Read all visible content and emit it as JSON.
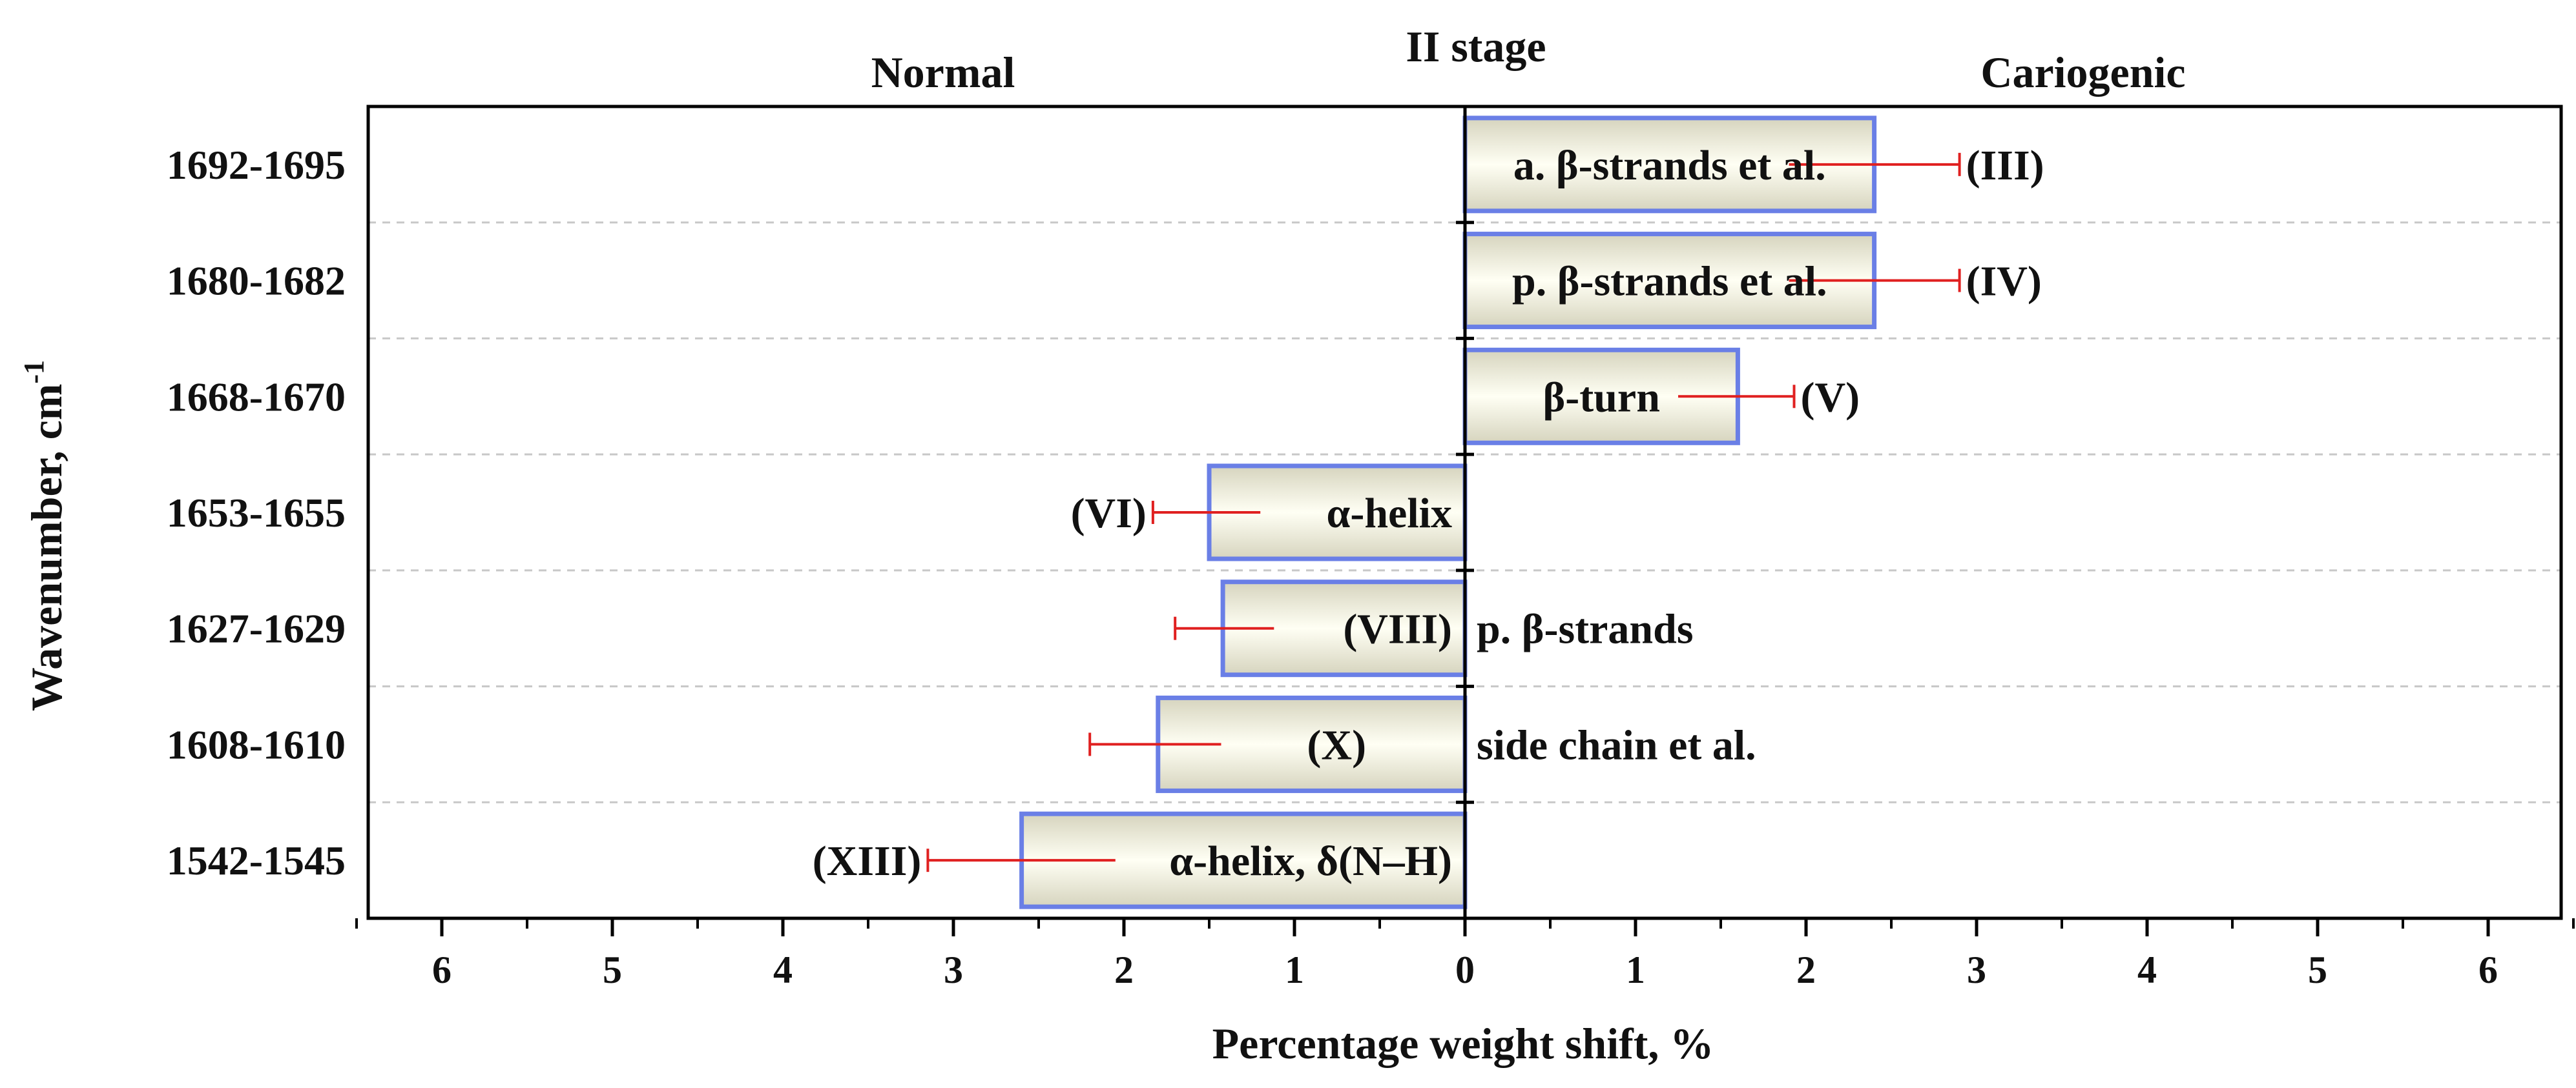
{
  "chart_data": {
    "type": "bar",
    "orientation": "horizontal-diverging",
    "title": "II stage",
    "side_labels": {
      "left": "Normal",
      "right": "Cariogenic"
    },
    "xlabel": "Percentage weight shift, %",
    "ylabel": "Wavenumber, cm",
    "ylabel_superscript": "-1",
    "xlim": [
      -6.5,
      6.5
    ],
    "x_ticks": [
      -6,
      -5,
      -4,
      -3,
      -2,
      -1,
      0,
      1,
      2,
      3,
      4,
      5,
      6
    ],
    "x_tick_labels": [
      "6",
      "5",
      "4",
      "3",
      "2",
      "1",
      "0",
      "1",
      "2",
      "3",
      "4",
      "5",
      "6"
    ],
    "grid": "horizontal-dashed",
    "categories": [
      "1692-1695",
      "1680-1682",
      "1668-1670",
      "1653-1655",
      "1627-1629",
      "1608-1610",
      "1542-1545"
    ],
    "values": [
      2.4,
      2.4,
      1.6,
      -1.5,
      -1.42,
      -1.8,
      -2.6
    ],
    "error_bars": [
      {
        "from": 1.9,
        "to": 2.9
      },
      {
        "from": 1.9,
        "to": 2.9
      },
      {
        "from": 1.25,
        "to": 1.93
      },
      {
        "from": -1.2,
        "to": -1.83
      },
      {
        "from": -1.12,
        "to": -1.7
      },
      {
        "from": -1.43,
        "to": -2.2
      },
      {
        "from": -2.05,
        "to": -3.15
      }
    ],
    "annotations": [
      {
        "assignment": "a. β-strands et al.",
        "band": "(III)"
      },
      {
        "assignment": "p. β-strands et al.",
        "band": "(IV)"
      },
      {
        "assignment": "β-turn",
        "band": "(V)"
      },
      {
        "assignment": "α-helix",
        "band": "(VI)"
      },
      {
        "assignment": "p. β-strands",
        "band": "(VIII)"
      },
      {
        "assignment": "side chain et al.",
        "band": "(X)"
      },
      {
        "assignment": "α-helix, δ(N–H)",
        "band": "(XIII)"
      }
    ],
    "colors": {
      "bar_edge": "#6a7fe6",
      "bar_fill_light": "#fffff4",
      "bar_fill_dark": "#d6d4be",
      "error_bar": "#e02020",
      "grid": "#c8c8c8",
      "axis": "#000000"
    }
  }
}
